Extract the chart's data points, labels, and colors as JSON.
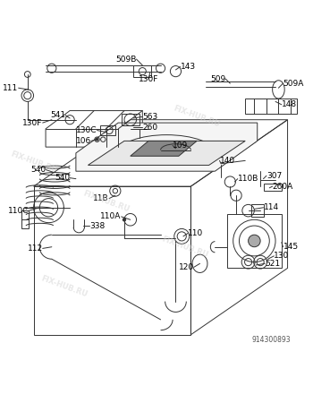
{
  "title": "",
  "background_color": "#ffffff",
  "watermark_text": "FIX-HUB.RU",
  "catalog_number": "914300893",
  "line_color": "#333333",
  "label_color": "#000000",
  "label_fontsize": 6.5,
  "parts": [
    {
      "id": "509B"
    },
    {
      "id": "130F"
    },
    {
      "id": "143"
    },
    {
      "id": "509"
    },
    {
      "id": "509A"
    },
    {
      "id": "148"
    },
    {
      "id": "111"
    },
    {
      "id": "541"
    },
    {
      "id": "563"
    },
    {
      "id": "260"
    },
    {
      "id": "130C"
    },
    {
      "id": "106"
    },
    {
      "id": "109"
    },
    {
      "id": "140"
    },
    {
      "id": "307"
    },
    {
      "id": "260A"
    },
    {
      "id": "110B"
    },
    {
      "id": "540"
    },
    {
      "id": "11B"
    },
    {
      "id": "110C"
    },
    {
      "id": "114"
    },
    {
      "id": "110A"
    },
    {
      "id": "338"
    },
    {
      "id": "112"
    },
    {
      "id": "110"
    },
    {
      "id": "145"
    },
    {
      "id": "130"
    },
    {
      "id": "521"
    },
    {
      "id": "120"
    }
  ]
}
